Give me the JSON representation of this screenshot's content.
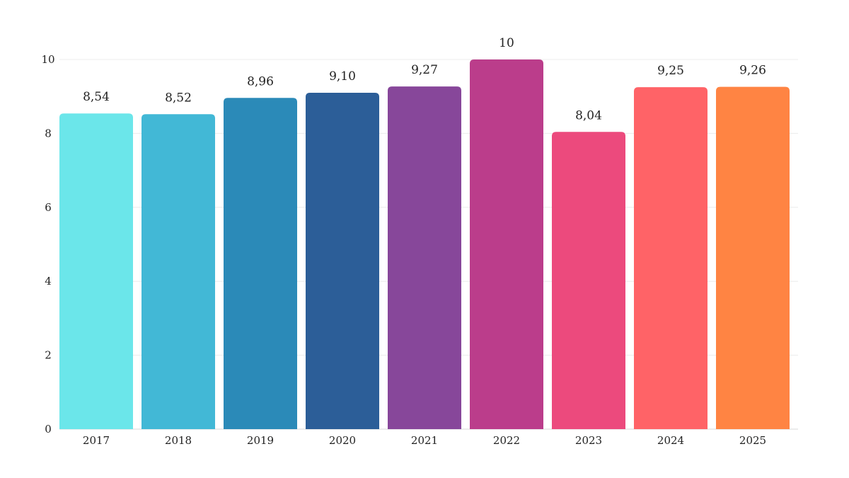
{
  "chart_data": {
    "type": "bar",
    "categories": [
      "2017",
      "2018",
      "2019",
      "2020",
      "2021",
      "2022",
      "2023",
      "2024",
      "2025"
    ],
    "values": [
      8.54,
      8.52,
      8.96,
      9.1,
      9.27,
      10,
      8.04,
      9.25,
      9.26
    ],
    "value_labels": [
      "8,54",
      "8,52",
      "8,96",
      "9,10",
      "9,27",
      "10",
      "8,04",
      "9,25",
      "9,26"
    ],
    "colors": [
      "#6be6ea",
      "#42b8d6",
      "#2b8ab8",
      "#2c5e98",
      "#87479a",
      "#bb3d8b",
      "#ec4a7d",
      "#ff6367",
      "#ff8443"
    ],
    "y_ticks": [
      "0",
      "2",
      "4",
      "6",
      "8",
      "10"
    ],
    "title": "",
    "xlabel": "",
    "ylabel": "",
    "ylim": [
      0,
      10
    ],
    "grid": true,
    "legend": "none"
  }
}
